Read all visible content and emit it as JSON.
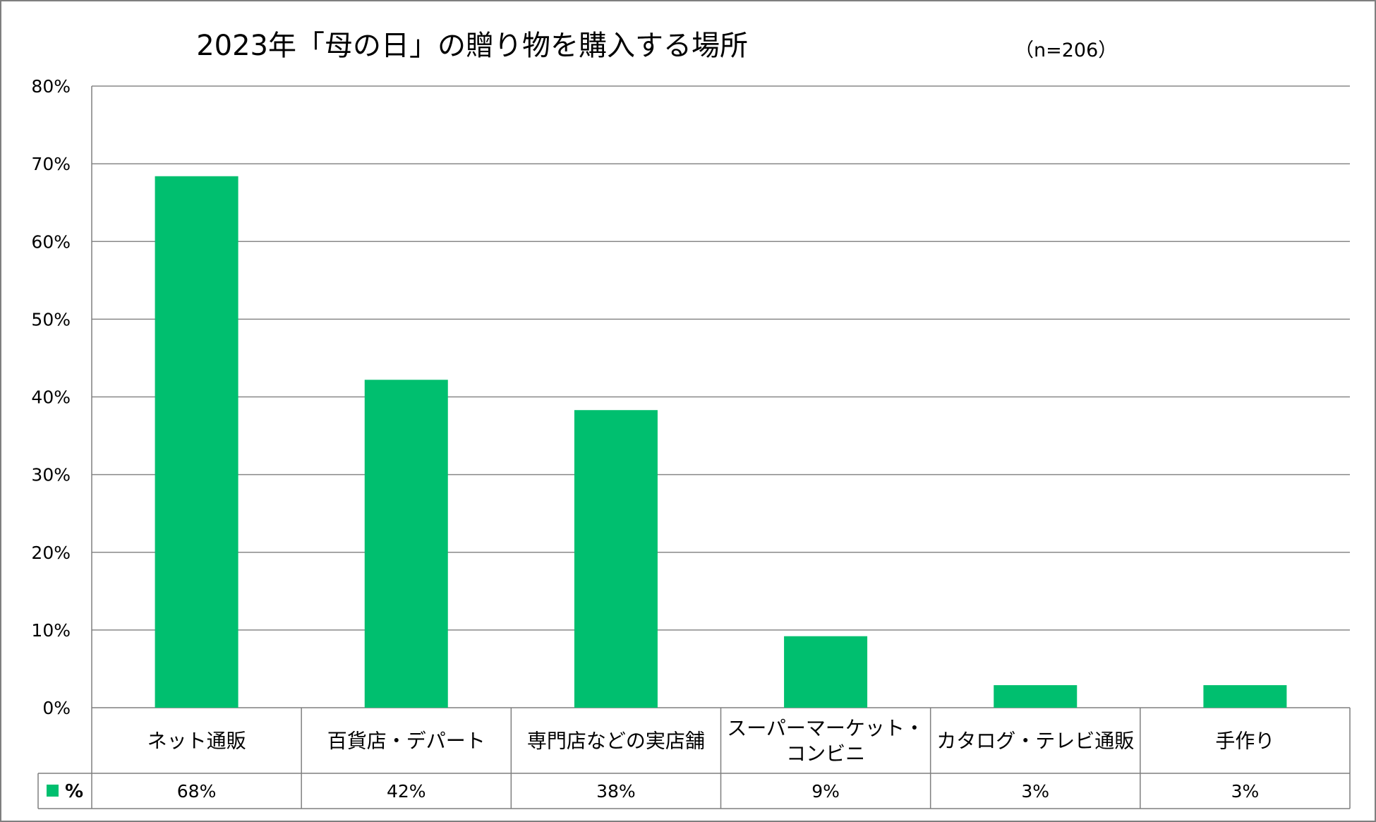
{
  "chart_data": {
    "type": "bar",
    "title": "2023年「母の日」の贈り物を購入する場所",
    "subtitle": "（n=206）",
    "categories": [
      [
        "ネット通販"
      ],
      [
        "百貨店・デパート"
      ],
      [
        "専門店などの実店舗"
      ],
      [
        "スーパーマーケット・",
        "コンビニ"
      ],
      [
        "カタログ・テレビ通販"
      ],
      [
        "手作り"
      ]
    ],
    "series": [
      {
        "name": "%",
        "values": [
          68.4,
          42.2,
          38.3,
          9.2,
          2.9,
          2.9
        ],
        "labels": [
          "68%",
          "42%",
          "38%",
          "9%",
          "3%",
          "3%"
        ],
        "color": "#00BF6F"
      }
    ],
    "ylim": [
      0,
      80
    ],
    "yticks": [
      0,
      10,
      20,
      30,
      40,
      50,
      60,
      70,
      80
    ],
    "ytick_labels": [
      "0%",
      "10%",
      "20%",
      "30%",
      "40%",
      "50%",
      "60%",
      "70%",
      "80%"
    ],
    "grid": true,
    "legend": "data-table-left",
    "colors": {
      "bar": "#00BF6F",
      "grid": "#888888",
      "border": "#7f7f7f"
    }
  }
}
